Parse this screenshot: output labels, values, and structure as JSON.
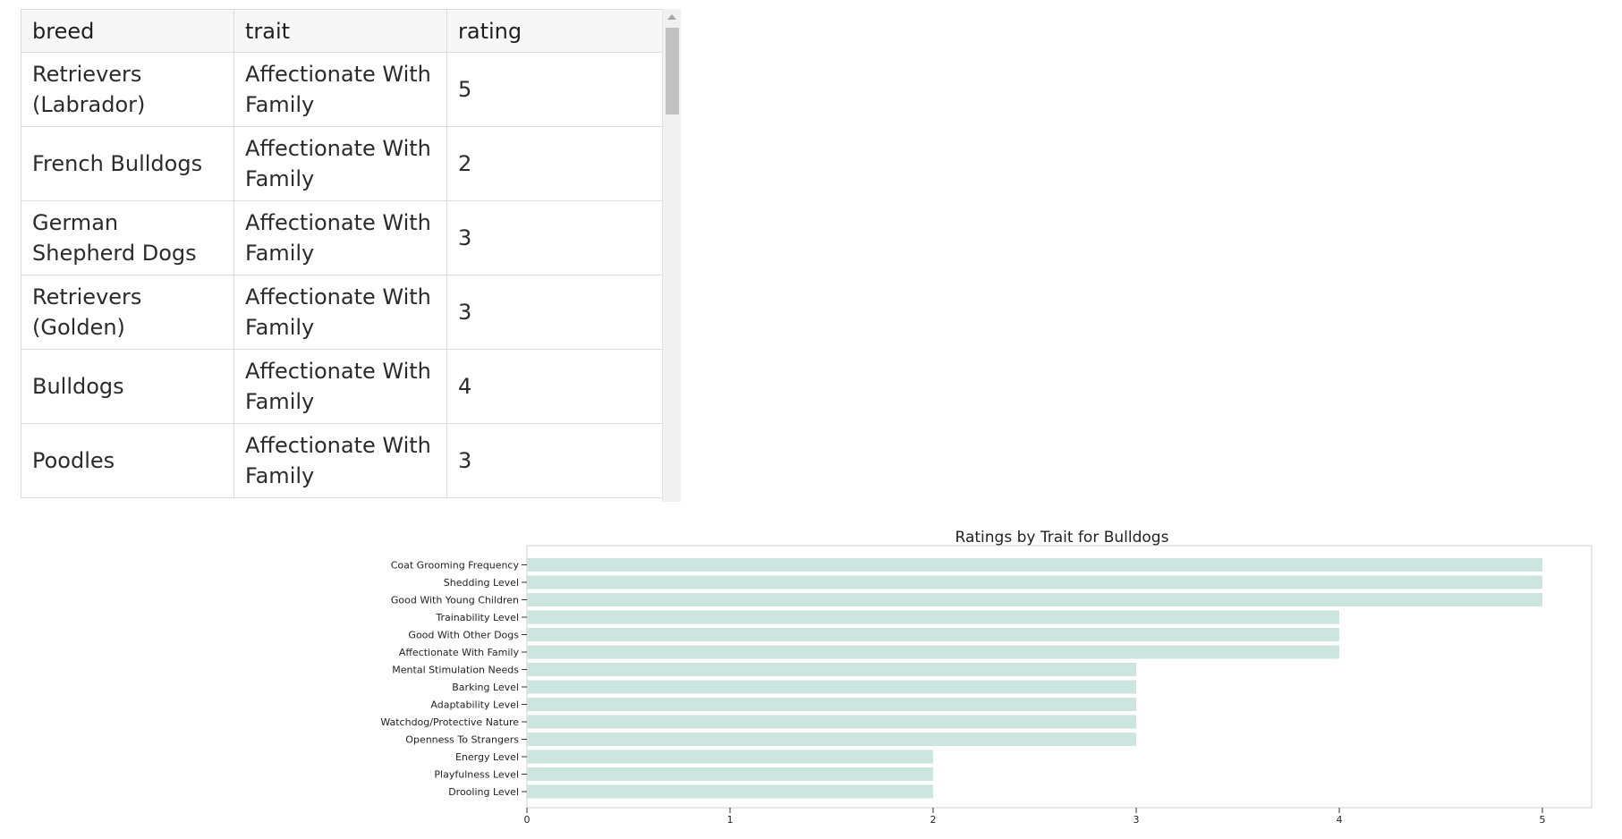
{
  "table": {
    "columns": [
      "breed",
      "trait",
      "rating"
    ],
    "rows": [
      {
        "breed": "Retrievers (Labrador)",
        "trait": "Affectionate With Family",
        "rating": "5"
      },
      {
        "breed": "French Bulldogs",
        "trait": "Affectionate With Family",
        "rating": "2"
      },
      {
        "breed": "German Shepherd Dogs",
        "trait": "Affectionate With Family",
        "rating": "3"
      },
      {
        "breed": "Retrievers (Golden)",
        "trait": "Affectionate With Family",
        "rating": "3"
      },
      {
        "breed": "Bulldogs",
        "trait": "Affectionate With Family",
        "rating": "4"
      },
      {
        "breed": "Poodles",
        "trait": "Affectionate With Family",
        "rating": "3"
      }
    ]
  },
  "chart_data": {
    "type": "bar",
    "orientation": "horizontal",
    "title": "Ratings by Trait for Bulldogs",
    "categories": [
      "Coat Grooming Frequency",
      "Shedding Level",
      "Good With Young Children",
      "Trainability Level",
      "Good With Other Dogs",
      "Affectionate With Family",
      "Mental Stimulation Needs",
      "Barking Level",
      "Adaptability Level",
      "Watchdog/Protective Nature",
      "Openness To Strangers",
      "Energy Level",
      "Playfulness Level",
      "Drooling Level"
    ],
    "values": [
      5,
      5,
      5,
      4,
      4,
      4,
      3,
      3,
      3,
      3,
      3,
      2,
      2,
      2
    ],
    "xticks": [
      "0",
      "1",
      "2",
      "3",
      "4",
      "5"
    ],
    "xlim": [
      0,
      5.25
    ],
    "bar_color": "#cce6df",
    "grid": false
  }
}
